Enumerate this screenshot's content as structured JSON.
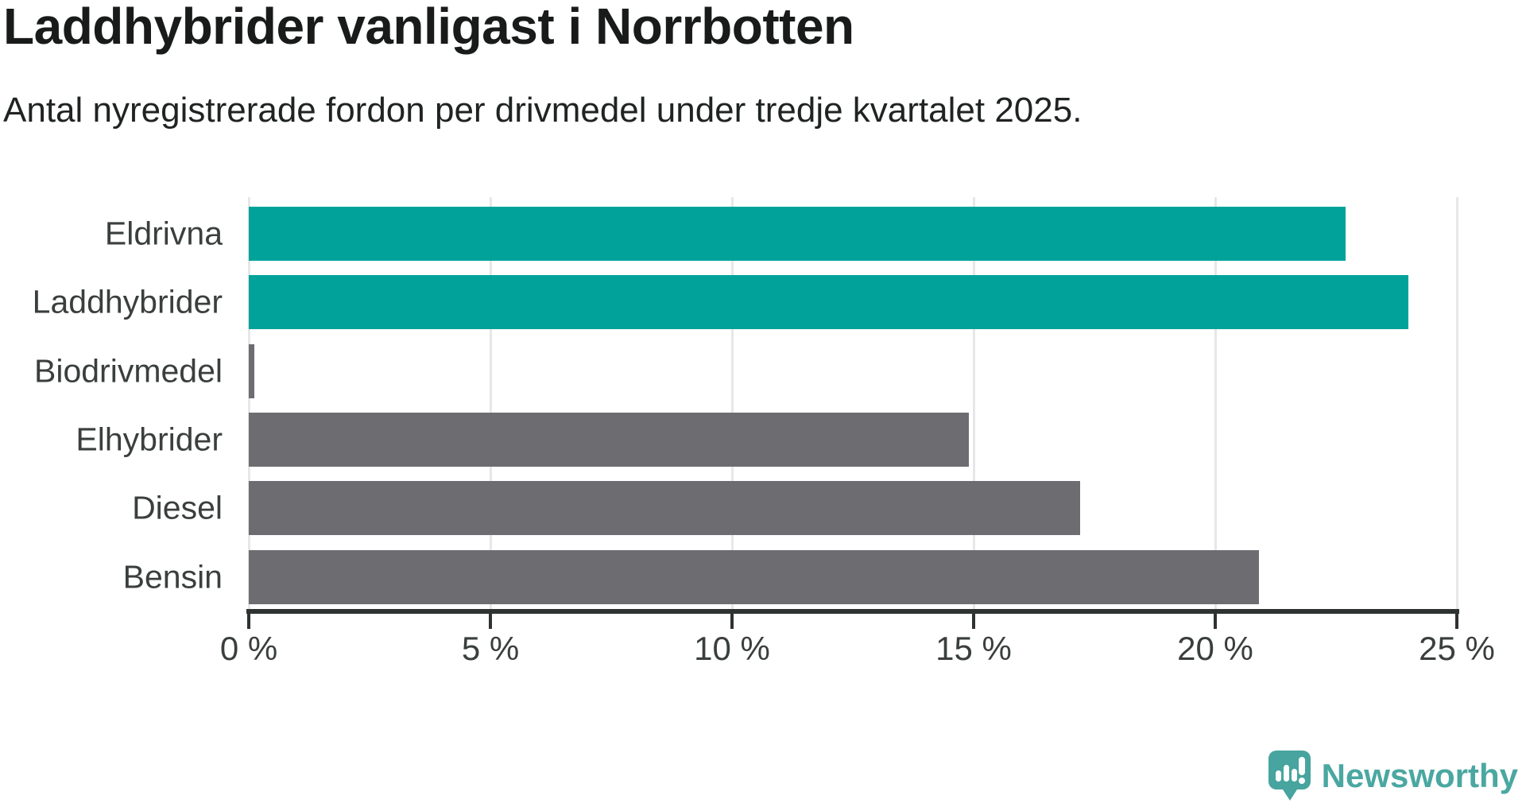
{
  "title": "Laddhybrider vanligast i Norrbotten",
  "subtitle": "Antal nyregistrerade fordon per drivmedel under tredje kvartalet 2025.",
  "chart_data": {
    "type": "bar",
    "orientation": "horizontal",
    "title": "Laddhybrider vanligast i Norrbotten",
    "subtitle": "Antal nyregistrerade fordon per drivmedel under tredje kvartalet 2025.",
    "categories": [
      "Eldrivna",
      "Laddhybrider",
      "Biodrivmedel",
      "Elhybrider",
      "Diesel",
      "Bensin"
    ],
    "values": [
      22.7,
      24.0,
      0.1,
      14.9,
      17.2,
      20.9
    ],
    "unit": "%",
    "colors": [
      "#00a29a",
      "#00a29a",
      "#6d6c71",
      "#6d6c71",
      "#6d6c71",
      "#6d6c71"
    ],
    "highlight_color": "#00a29a",
    "default_color": "#6d6c71",
    "xlim": [
      0,
      25
    ],
    "x_tick_values": [
      0,
      5,
      10,
      15,
      20,
      25
    ],
    "x_tick_labels": [
      "0 %",
      "5 %",
      "10 %",
      "15 %",
      "20 %",
      "25 %"
    ],
    "grid": true,
    "legend": "none",
    "gridline_color": "#e7e7e7",
    "axis_color": "#2e3331"
  },
  "footer": {
    "brand": "Newsworthy",
    "brand_color": "#4aa7a1",
    "logo_icon": "newsworthy-speech-bubble-chart-icon"
  }
}
